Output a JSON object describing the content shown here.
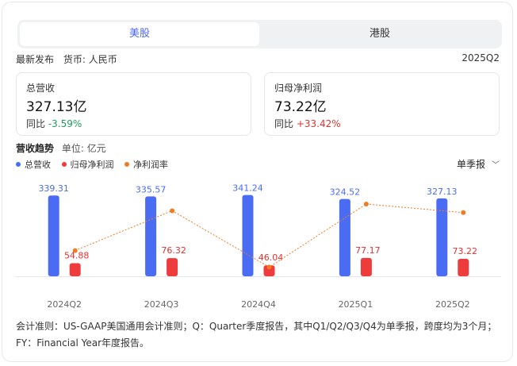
{
  "tabs": [
    {
      "label": "美股",
      "active": true
    },
    {
      "label": "港股",
      "active": false
    }
  ],
  "meta": {
    "release": "最新发布",
    "currency": "货币: 人民币",
    "period": "2025Q2"
  },
  "stats": {
    "revenue": {
      "label": "总营收",
      "value": "327.13亿",
      "change_label": "同比",
      "change_value": "-3.59%"
    },
    "net_profit": {
      "label": "归母净利润",
      "value": "73.22亿",
      "change_label": "同比",
      "change_value": "+33.42%"
    }
  },
  "trend": {
    "title": "营收趋势",
    "unit": "单位: 亿元",
    "period_select": "单季报"
  },
  "legend": [
    {
      "label": "总营收",
      "color": "#4a6cf2"
    },
    {
      "label": "归母净利润",
      "color": "#ee3b3b"
    },
    {
      "label": "净利润率",
      "color": "#f07c22"
    }
  ],
  "chart_data": {
    "type": "bar",
    "categories": [
      "2024Q2",
      "2024Q3",
      "2024Q4",
      "2025Q1",
      "2025Q2"
    ],
    "series": [
      {
        "name": "总营收",
        "type": "bar",
        "color": "#4a6cf2",
        "values": [
          339.31,
          335.57,
          341.24,
          324.52,
          327.13
        ]
      },
      {
        "name": "归母净利润",
        "type": "bar",
        "color": "#ee3b3b",
        "values": [
          54.88,
          76.32,
          46.04,
          77.17,
          73.22
        ]
      },
      {
        "name": "净利润率",
        "type": "line",
        "color": "#f07c22",
        "values": [
          16.2,
          22.7,
          13.5,
          23.8,
          22.4
        ]
      }
    ],
    "ylim": [
      0,
      360
    ],
    "line_ylim": [
      12,
      26
    ]
  },
  "footnote": "会计准则：US-GAAP美国通用会计准则；Q：Quarter季度报告，其中Q1/Q2/Q3/Q4为单季报，跨度均为3个月；FY：Financial Year年度报告。"
}
